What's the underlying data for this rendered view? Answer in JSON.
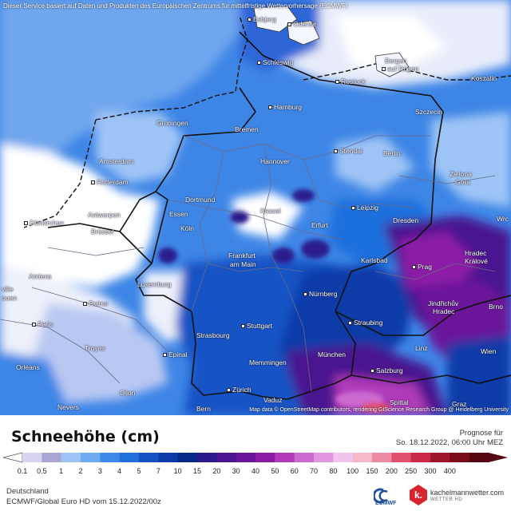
{
  "disclaimer": "Dieser Service basiert auf Daten und Produkten des Europäischen Zentrums für mittelfristige Wettervorhersage (ECMWF)",
  "attribution": "Map data © OpenStreetMap contributors, rendering GIScience Research Group @ Heidelberg University",
  "cities": [
    {
      "id": "esbjerg",
      "label": "Esbjerg"
    },
    {
      "id": "odense",
      "label": "Odense"
    },
    {
      "id": "schleswig",
      "label": "Schleswig"
    },
    {
      "id": "bergen",
      "label": "Bergen"
    },
    {
      "id": "auf-ruegen",
      "label": "auf Rügen"
    },
    {
      "id": "koszalin",
      "label": "Koszalin"
    },
    {
      "id": "rostock",
      "label": "Rostock"
    },
    {
      "id": "hamburg",
      "label": "Hamburg"
    },
    {
      "id": "szczecin",
      "label": "Szczecin"
    },
    {
      "id": "groningen",
      "label": "Groningen"
    },
    {
      "id": "bremen",
      "label": "Bremen"
    },
    {
      "id": "stendal",
      "label": "Stendal"
    },
    {
      "id": "berlin",
      "label": "Berlin"
    },
    {
      "id": "amsterdam",
      "label": "Amsterdam"
    },
    {
      "id": "hannover",
      "label": "Hannover"
    },
    {
      "id": "zielona",
      "label": "Zielona"
    },
    {
      "id": "gora",
      "label": "Góra"
    },
    {
      "id": "rotterdam",
      "label": "Rotterdam"
    },
    {
      "id": "dortmund",
      "label": "Dortmund"
    },
    {
      "id": "kassel",
      "label": "Kassel"
    },
    {
      "id": "leipzig",
      "label": "Leipzig"
    },
    {
      "id": "dunkirchen",
      "label": "Dünkirchen"
    },
    {
      "id": "antwerpen",
      "label": "Antwerpen"
    },
    {
      "id": "essen",
      "label": "Essen"
    },
    {
      "id": "erfurt",
      "label": "Erfurt"
    },
    {
      "id": "dresden",
      "label": "Dresden"
    },
    {
      "id": "wro",
      "label": "Wrc"
    },
    {
      "id": "bruessel",
      "label": "Brüssel"
    },
    {
      "id": "koeln",
      "label": "Köln"
    },
    {
      "id": "amiens",
      "label": "Amiens"
    },
    {
      "id": "frankfurt",
      "label": "Frankfurt"
    },
    {
      "id": "am-main",
      "label": "am Main"
    },
    {
      "id": "karlsbad",
      "label": "Karlsbad"
    },
    {
      "id": "prag",
      "label": "Prag"
    },
    {
      "id": "hradec",
      "label": "Hradec"
    },
    {
      "id": "kralove",
      "label": "Králové"
    },
    {
      "id": "luxemburg",
      "label": "Luxemburg"
    },
    {
      "id": "ville",
      "label": "ville"
    },
    {
      "id": "rouen",
      "label": "ouen"
    },
    {
      "id": "nuernberg",
      "label": "Nürnberg"
    },
    {
      "id": "reims",
      "label": "Reims"
    },
    {
      "id": "jindrichuv",
      "label": "Jindřichův"
    },
    {
      "id": "jhradec",
      "label": "Hradec"
    },
    {
      "id": "brno",
      "label": "Brno"
    },
    {
      "id": "paris",
      "label": "Paris"
    },
    {
      "id": "stuttgart",
      "label": "Stuttgart"
    },
    {
      "id": "straubing",
      "label": "Straubing"
    },
    {
      "id": "strasbourg",
      "label": "Strasbourg"
    },
    {
      "id": "troyes",
      "label": "Troyes"
    },
    {
      "id": "linz",
      "label": "Linz"
    },
    {
      "id": "wien",
      "label": "Wien"
    },
    {
      "id": "epinal",
      "label": "Épinal"
    },
    {
      "id": "muenchen",
      "label": "München"
    },
    {
      "id": "orleans",
      "label": "Orléans"
    },
    {
      "id": "memmingen",
      "label": "Memmingen"
    },
    {
      "id": "salzburg",
      "label": "Salzburg"
    },
    {
      "id": "dijon",
      "label": "Dijon"
    },
    {
      "id": "zuerich",
      "label": "Zürich"
    },
    {
      "id": "vaduz",
      "label": "Vaduz"
    },
    {
      "id": "spittal",
      "label": "Spittal"
    },
    {
      "id": "graz",
      "label": "Graz"
    },
    {
      "id": "nevers",
      "label": "Nevers"
    },
    {
      "id": "bern",
      "label": "Bern"
    }
  ],
  "legend": {
    "title": "Schneehöhe (cm)",
    "forecast_label": "Prognose für",
    "forecast_date": "So. 18.12.2022, 06:00 Uhr MEZ",
    "ticks": [
      "0.1",
      "0.5",
      "1",
      "2",
      "3",
      "4",
      "5",
      "7",
      "10",
      "15",
      "20",
      "30",
      "40",
      "50",
      "60",
      "70",
      "80",
      "100",
      "150",
      "200",
      "250",
      "300",
      "400"
    ],
    "colors": [
      "#d6d4ee",
      "#a8a6d4",
      "#9ec4f5",
      "#6eaaf2",
      "#3f8ae8",
      "#1f6fdd",
      "#1452c4",
      "#0c3aa8",
      "#082a86",
      "#2c1a8c",
      "#4a158f",
      "#6a1598",
      "#8c1ca6",
      "#b03ab8",
      "#cc6ad0",
      "#e097e0",
      "#f0c4ec",
      "#f6b8c8",
      "#ee8aa2",
      "#e0506e",
      "#c82845",
      "#a0142a",
      "#7a0a1a",
      "#560812"
    ]
  },
  "footer": {
    "region": "Deutschland",
    "model": "ECMWF/Global Euro HD vom  15.12.2022/00z",
    "ecmwf_label": "ECMWF",
    "brand_name": "kachelmannwetter.com",
    "brand_sub": "WETTER HD",
    "brand_letter": "k."
  }
}
